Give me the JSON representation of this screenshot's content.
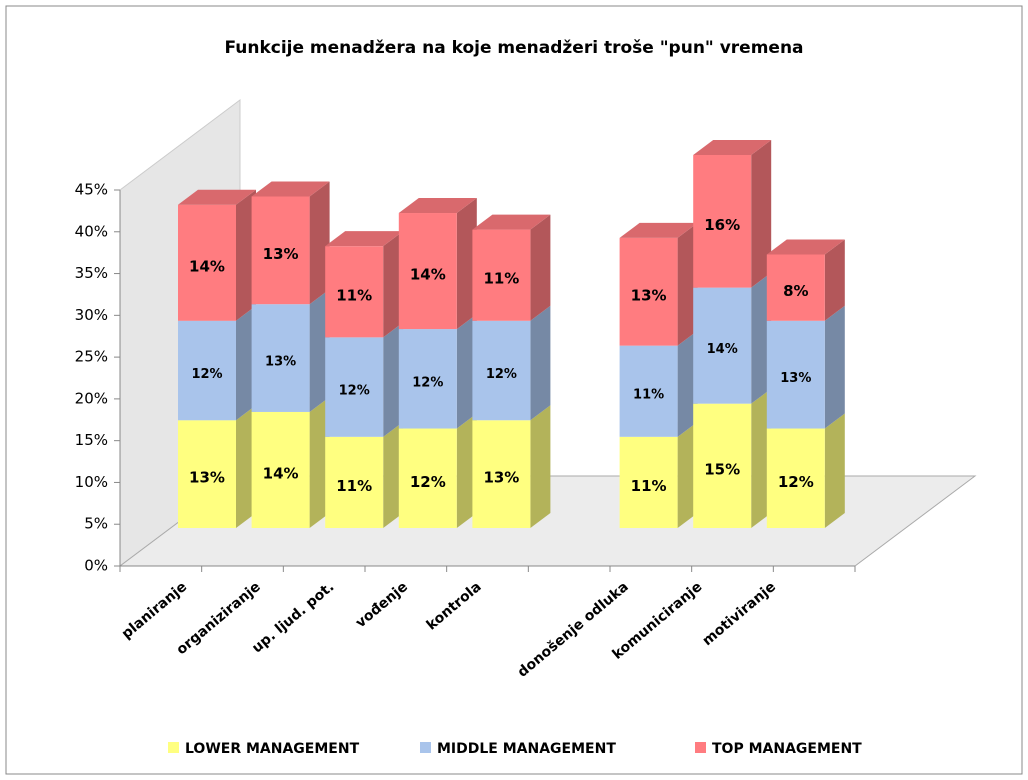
{
  "chart_data": {
    "type": "bar3d_stacked",
    "title": "Funkcije menadžera na koje menadžeri troše \"pun\" vremena",
    "categories": [
      "planiranje",
      "organiziranje",
      "up. ljud. pot.",
      "vođenje",
      "kontrola",
      null,
      "donošenje odluka",
      "komuniciranje",
      "motiviranje"
    ],
    "series": [
      {
        "name": "LOWER MANAGEMENT",
        "color": "#ffff80",
        "values": [
          13,
          14,
          11,
          12,
          13,
          null,
          11,
          15,
          12
        ],
        "value_labels": [
          "13%",
          "14%",
          "11%",
          "12%",
          "13%",
          null,
          "11%",
          "15%",
          "12%"
        ]
      },
      {
        "name": "MIDDLE MANAGEMENT",
        "color": "#a9c4eb",
        "values": [
          12,
          13,
          12,
          12,
          12,
          null,
          11,
          14,
          13
        ],
        "value_labels": [
          "12%",
          "13%",
          "12%",
          "12%",
          "12%",
          null,
          "11%",
          "14%",
          "13%"
        ]
      },
      {
        "name": "TOP MANAGEMENT",
        "color": "#ff7c80",
        "values": [
          14,
          13,
          11,
          14,
          11,
          null,
          13,
          16,
          8
        ],
        "value_labels": [
          "14%",
          "13%",
          "11%",
          "14%",
          "11%",
          null,
          "13%",
          "16%",
          "8%"
        ]
      }
    ],
    "ylim": [
      0,
      45
    ],
    "yticks": [
      {
        "value": 0,
        "label": "0%"
      },
      {
        "value": 5,
        "label": "5%"
      },
      {
        "value": 10,
        "label": "10%"
      },
      {
        "value": 15,
        "label": "15%"
      },
      {
        "value": 20,
        "label": "20%"
      },
      {
        "value": 25,
        "label": "25%"
      },
      {
        "value": 30,
        "label": "30%"
      },
      {
        "value": 35,
        "label": "35%"
      },
      {
        "value": 40,
        "label": "40%"
      },
      {
        "value": 45,
        "label": "45%"
      }
    ]
  }
}
